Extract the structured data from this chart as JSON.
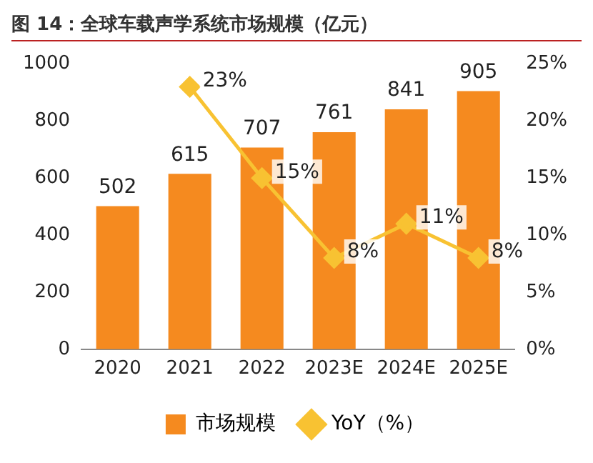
{
  "chart_data": {
    "type": "bar",
    "title": "图 14：全球车载声学系统市场规模（亿元）",
    "categories": [
      "2020",
      "2021",
      "2022",
      "2023E",
      "2024E",
      "2025E"
    ],
    "series": [
      {
        "name": "市场规模",
        "color": "#f58a1f",
        "values": [
          502,
          615,
          707,
          761,
          841,
          905
        ],
        "value_labels": [
          "502",
          "615",
          "707",
          "761",
          "841",
          "905"
        ]
      },
      {
        "name": "YoY（%）",
        "type": "line",
        "axis": "y2",
        "color": "#f8c232",
        "marker": "diamond",
        "values": [
          null,
          23,
          15,
          8,
          11,
          8
        ],
        "value_labels": [
          null,
          "23%",
          "15%",
          "8%",
          "11%",
          "8%"
        ]
      }
    ],
    "ylim": [
      0,
      1000
    ],
    "yticks": [
      0,
      200,
      400,
      600,
      800,
      1000
    ],
    "y2lim": [
      0,
      25
    ],
    "y2ticks": [
      {
        "value": 0,
        "label": "0%"
      },
      {
        "value": 5,
        "label": "5%"
      },
      {
        "value": 10,
        "label": "10%"
      },
      {
        "value": 15,
        "label": "15%"
      },
      {
        "value": 20,
        "label": "20%"
      },
      {
        "value": 25,
        "label": "25%"
      }
    ],
    "grid": false,
    "legend": "bottom"
  }
}
